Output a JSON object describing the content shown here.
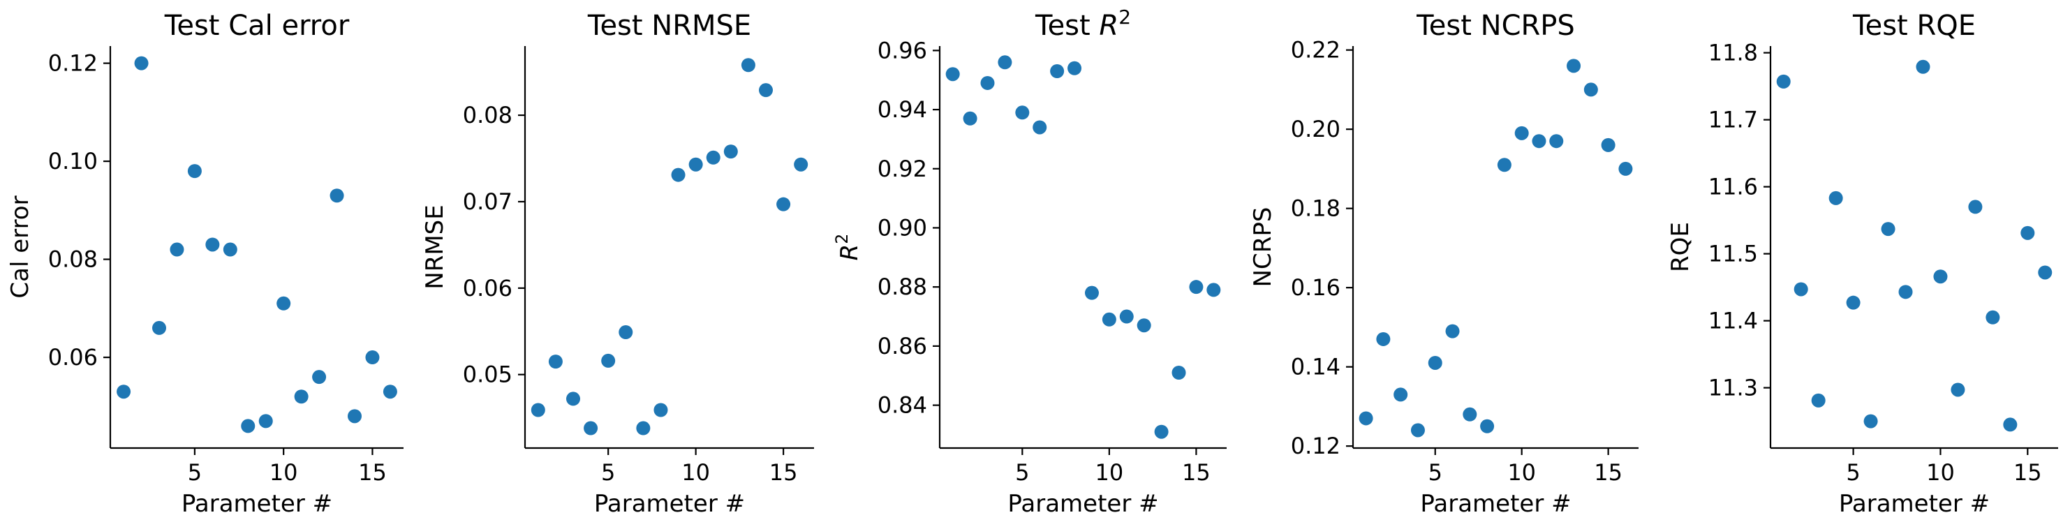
{
  "chart_data": [
    {
      "type": "scatter",
      "title": "Test Cal error",
      "xlabel": "Parameter #",
      "ylabel": "Cal error",
      "xlim": [
        0.25,
        16.75
      ],
      "ylim": [
        0.0415,
        0.1235
      ],
      "xticks": [
        5,
        10,
        15
      ],
      "yticks": [
        0.06,
        0.08,
        0.1,
        0.12
      ],
      "ytick_labels": [
        "0.06",
        "0.08",
        "0.10",
        "0.12"
      ],
      "points": [
        {
          "x": 1,
          "y": 0.053
        },
        {
          "x": 2,
          "y": 0.12
        },
        {
          "x": 3,
          "y": 0.066
        },
        {
          "x": 4,
          "y": 0.082
        },
        {
          "x": 5,
          "y": 0.098
        },
        {
          "x": 6,
          "y": 0.083
        },
        {
          "x": 7,
          "y": 0.082
        },
        {
          "x": 8,
          "y": 0.046
        },
        {
          "x": 9,
          "y": 0.047
        },
        {
          "x": 10,
          "y": 0.071
        },
        {
          "x": 11,
          "y": 0.052
        },
        {
          "x": 12,
          "y": 0.056
        },
        {
          "x": 13,
          "y": 0.093
        },
        {
          "x": 14,
          "y": 0.048
        },
        {
          "x": 15,
          "y": 0.06
        },
        {
          "x": 16,
          "y": 0.053
        }
      ]
    },
    {
      "type": "scatter",
      "title": "Test NRMSE",
      "xlabel": "Parameter #",
      "ylabel": "NRMSE",
      "xlim": [
        0.25,
        16.75
      ],
      "ylim": [
        0.0415,
        0.088
      ],
      "xticks": [
        5,
        10,
        15
      ],
      "yticks": [
        0.05,
        0.06,
        0.07,
        0.08
      ],
      "ytick_labels": [
        "0.05",
        "0.06",
        "0.07",
        "0.08"
      ],
      "points": [
        {
          "x": 1,
          "y": 0.0459
        },
        {
          "x": 2,
          "y": 0.0515
        },
        {
          "x": 3,
          "y": 0.0472
        },
        {
          "x": 4,
          "y": 0.0438
        },
        {
          "x": 5,
          "y": 0.0516
        },
        {
          "x": 6,
          "y": 0.0549
        },
        {
          "x": 7,
          "y": 0.0438
        },
        {
          "x": 8,
          "y": 0.0459
        },
        {
          "x": 9,
          "y": 0.0731
        },
        {
          "x": 10,
          "y": 0.0743
        },
        {
          "x": 11,
          "y": 0.0751
        },
        {
          "x": 12,
          "y": 0.0758
        },
        {
          "x": 13,
          "y": 0.0858
        },
        {
          "x": 14,
          "y": 0.0829
        },
        {
          "x": 15,
          "y": 0.0697
        },
        {
          "x": 16,
          "y": 0.0743
        }
      ]
    },
    {
      "type": "scatter",
      "title": "Test R²",
      "xlabel": "Parameter #",
      "ylabel": "R²",
      "xlim": [
        0.25,
        16.75
      ],
      "ylim": [
        0.8255,
        0.9615
      ],
      "xticks": [
        5,
        10,
        15
      ],
      "yticks": [
        0.84,
        0.86,
        0.88,
        0.9,
        0.92,
        0.94,
        0.96
      ],
      "ytick_labels": [
        "0.84",
        "0.86",
        "0.88",
        "0.90",
        "0.92",
        "0.94",
        "0.96"
      ],
      "points": [
        {
          "x": 1,
          "y": 0.952
        },
        {
          "x": 2,
          "y": 0.937
        },
        {
          "x": 3,
          "y": 0.949
        },
        {
          "x": 4,
          "y": 0.956
        },
        {
          "x": 5,
          "y": 0.939
        },
        {
          "x": 6,
          "y": 0.934
        },
        {
          "x": 7,
          "y": 0.953
        },
        {
          "x": 8,
          "y": 0.954
        },
        {
          "x": 9,
          "y": 0.878
        },
        {
          "x": 10,
          "y": 0.869
        },
        {
          "x": 11,
          "y": 0.87
        },
        {
          "x": 12,
          "y": 0.867
        },
        {
          "x": 13,
          "y": 0.831
        },
        {
          "x": 14,
          "y": 0.851
        },
        {
          "x": 15,
          "y": 0.88
        },
        {
          "x": 16,
          "y": 0.879
        }
      ]
    },
    {
      "type": "scatter",
      "title": "Test NCRPS",
      "xlabel": "Parameter #",
      "ylabel": "NCRPS",
      "xlim": [
        0.25,
        16.75
      ],
      "ylim": [
        0.1195,
        0.221
      ],
      "xticks": [
        5,
        10,
        15
      ],
      "yticks": [
        0.12,
        0.14,
        0.16,
        0.18,
        0.2,
        0.22
      ],
      "ytick_labels": [
        "0.12",
        "0.14",
        "0.16",
        "0.18",
        "0.20",
        "0.22"
      ],
      "points": [
        {
          "x": 1,
          "y": 0.127
        },
        {
          "x": 2,
          "y": 0.147
        },
        {
          "x": 3,
          "y": 0.133
        },
        {
          "x": 4,
          "y": 0.124
        },
        {
          "x": 5,
          "y": 0.141
        },
        {
          "x": 6,
          "y": 0.149
        },
        {
          "x": 7,
          "y": 0.128
        },
        {
          "x": 8,
          "y": 0.125
        },
        {
          "x": 9,
          "y": 0.191
        },
        {
          "x": 10,
          "y": 0.199
        },
        {
          "x": 11,
          "y": 0.197
        },
        {
          "x": 12,
          "y": 0.197
        },
        {
          "x": 13,
          "y": 0.216
        },
        {
          "x": 14,
          "y": 0.21
        },
        {
          "x": 15,
          "y": 0.196
        },
        {
          "x": 16,
          "y": 0.19
        }
      ]
    },
    {
      "type": "scatter",
      "title": "Test RQE",
      "xlabel": "Parameter #",
      "ylabel": "RQE",
      "xlim": [
        0.25,
        16.75
      ],
      "ylim": [
        11.21,
        11.81
      ],
      "xticks": [
        5,
        10,
        15
      ],
      "yticks": [
        11.3,
        11.4,
        11.5,
        11.6,
        11.7,
        11.8
      ],
      "ytick_labels": [
        "11.3",
        "11.4",
        "11.5",
        "11.6",
        "11.7",
        "11.8"
      ],
      "points": [
        {
          "x": 1,
          "y": 11.757
        },
        {
          "x": 2,
          "y": 11.447
        },
        {
          "x": 3,
          "y": 11.281
        },
        {
          "x": 4,
          "y": 11.583
        },
        {
          "x": 5,
          "y": 11.427
        },
        {
          "x": 6,
          "y": 11.25
        },
        {
          "x": 7,
          "y": 11.537
        },
        {
          "x": 8,
          "y": 11.443
        },
        {
          "x": 9,
          "y": 11.779
        },
        {
          "x": 10,
          "y": 11.466
        },
        {
          "x": 11,
          "y": 11.297
        },
        {
          "x": 12,
          "y": 11.57
        },
        {
          "x": 13,
          "y": 11.405
        },
        {
          "x": 14,
          "y": 11.245
        },
        {
          "x": 15,
          "y": 11.531
        },
        {
          "x": 16,
          "y": 11.472
        }
      ]
    }
  ],
  "style": {
    "point_color": "#1f77b4",
    "axis_color": "#000000"
  }
}
